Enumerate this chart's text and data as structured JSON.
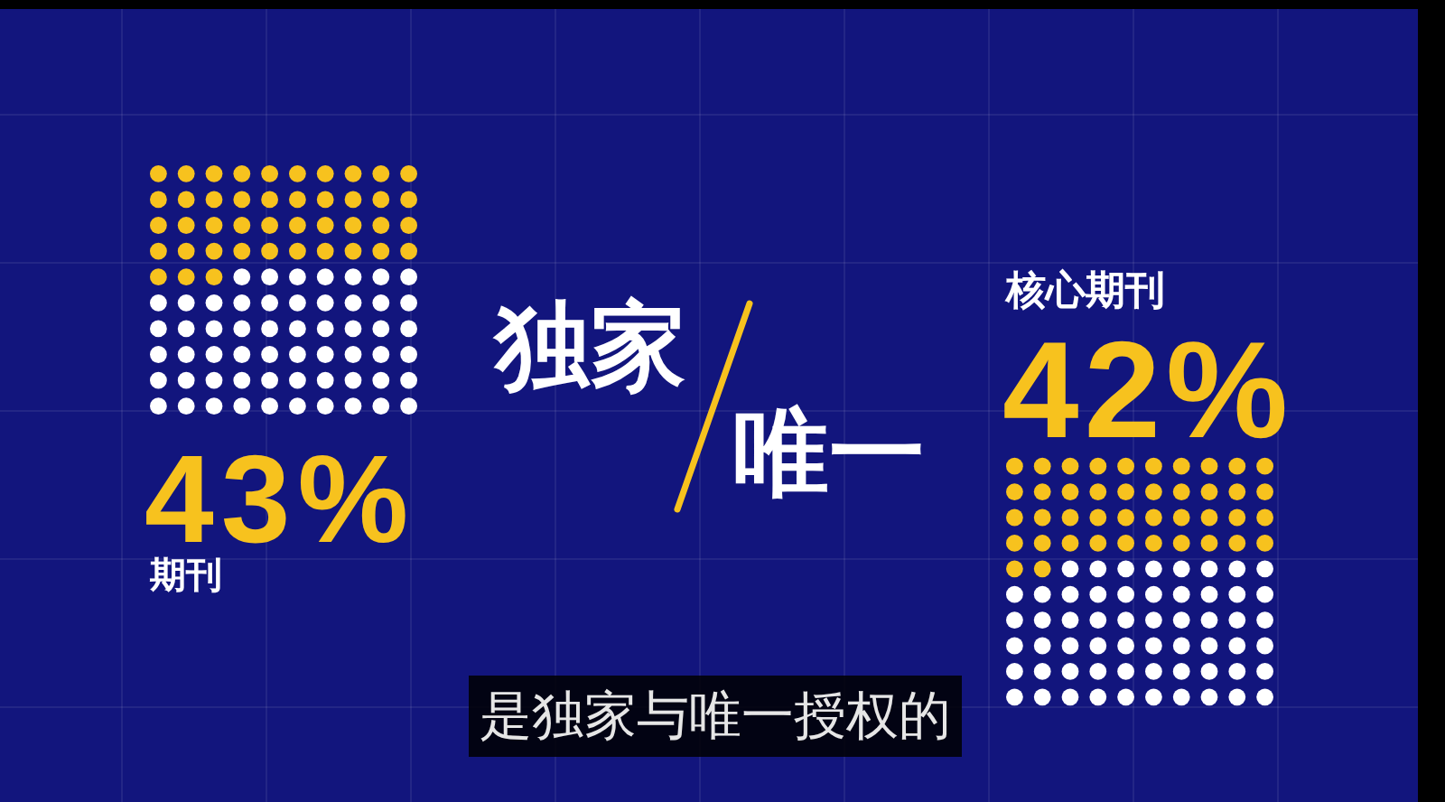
{
  "chart_data": {
    "type": "other",
    "categories": [
      "期刊",
      "核心期刊"
    ],
    "values": [
      43,
      42
    ],
    "value_labels": [
      "43%",
      "42%"
    ],
    "color": "#f7c21e",
    "annotations": [
      "独家",
      "唯一",
      "是独家与唯一授权的"
    ]
  }
}
